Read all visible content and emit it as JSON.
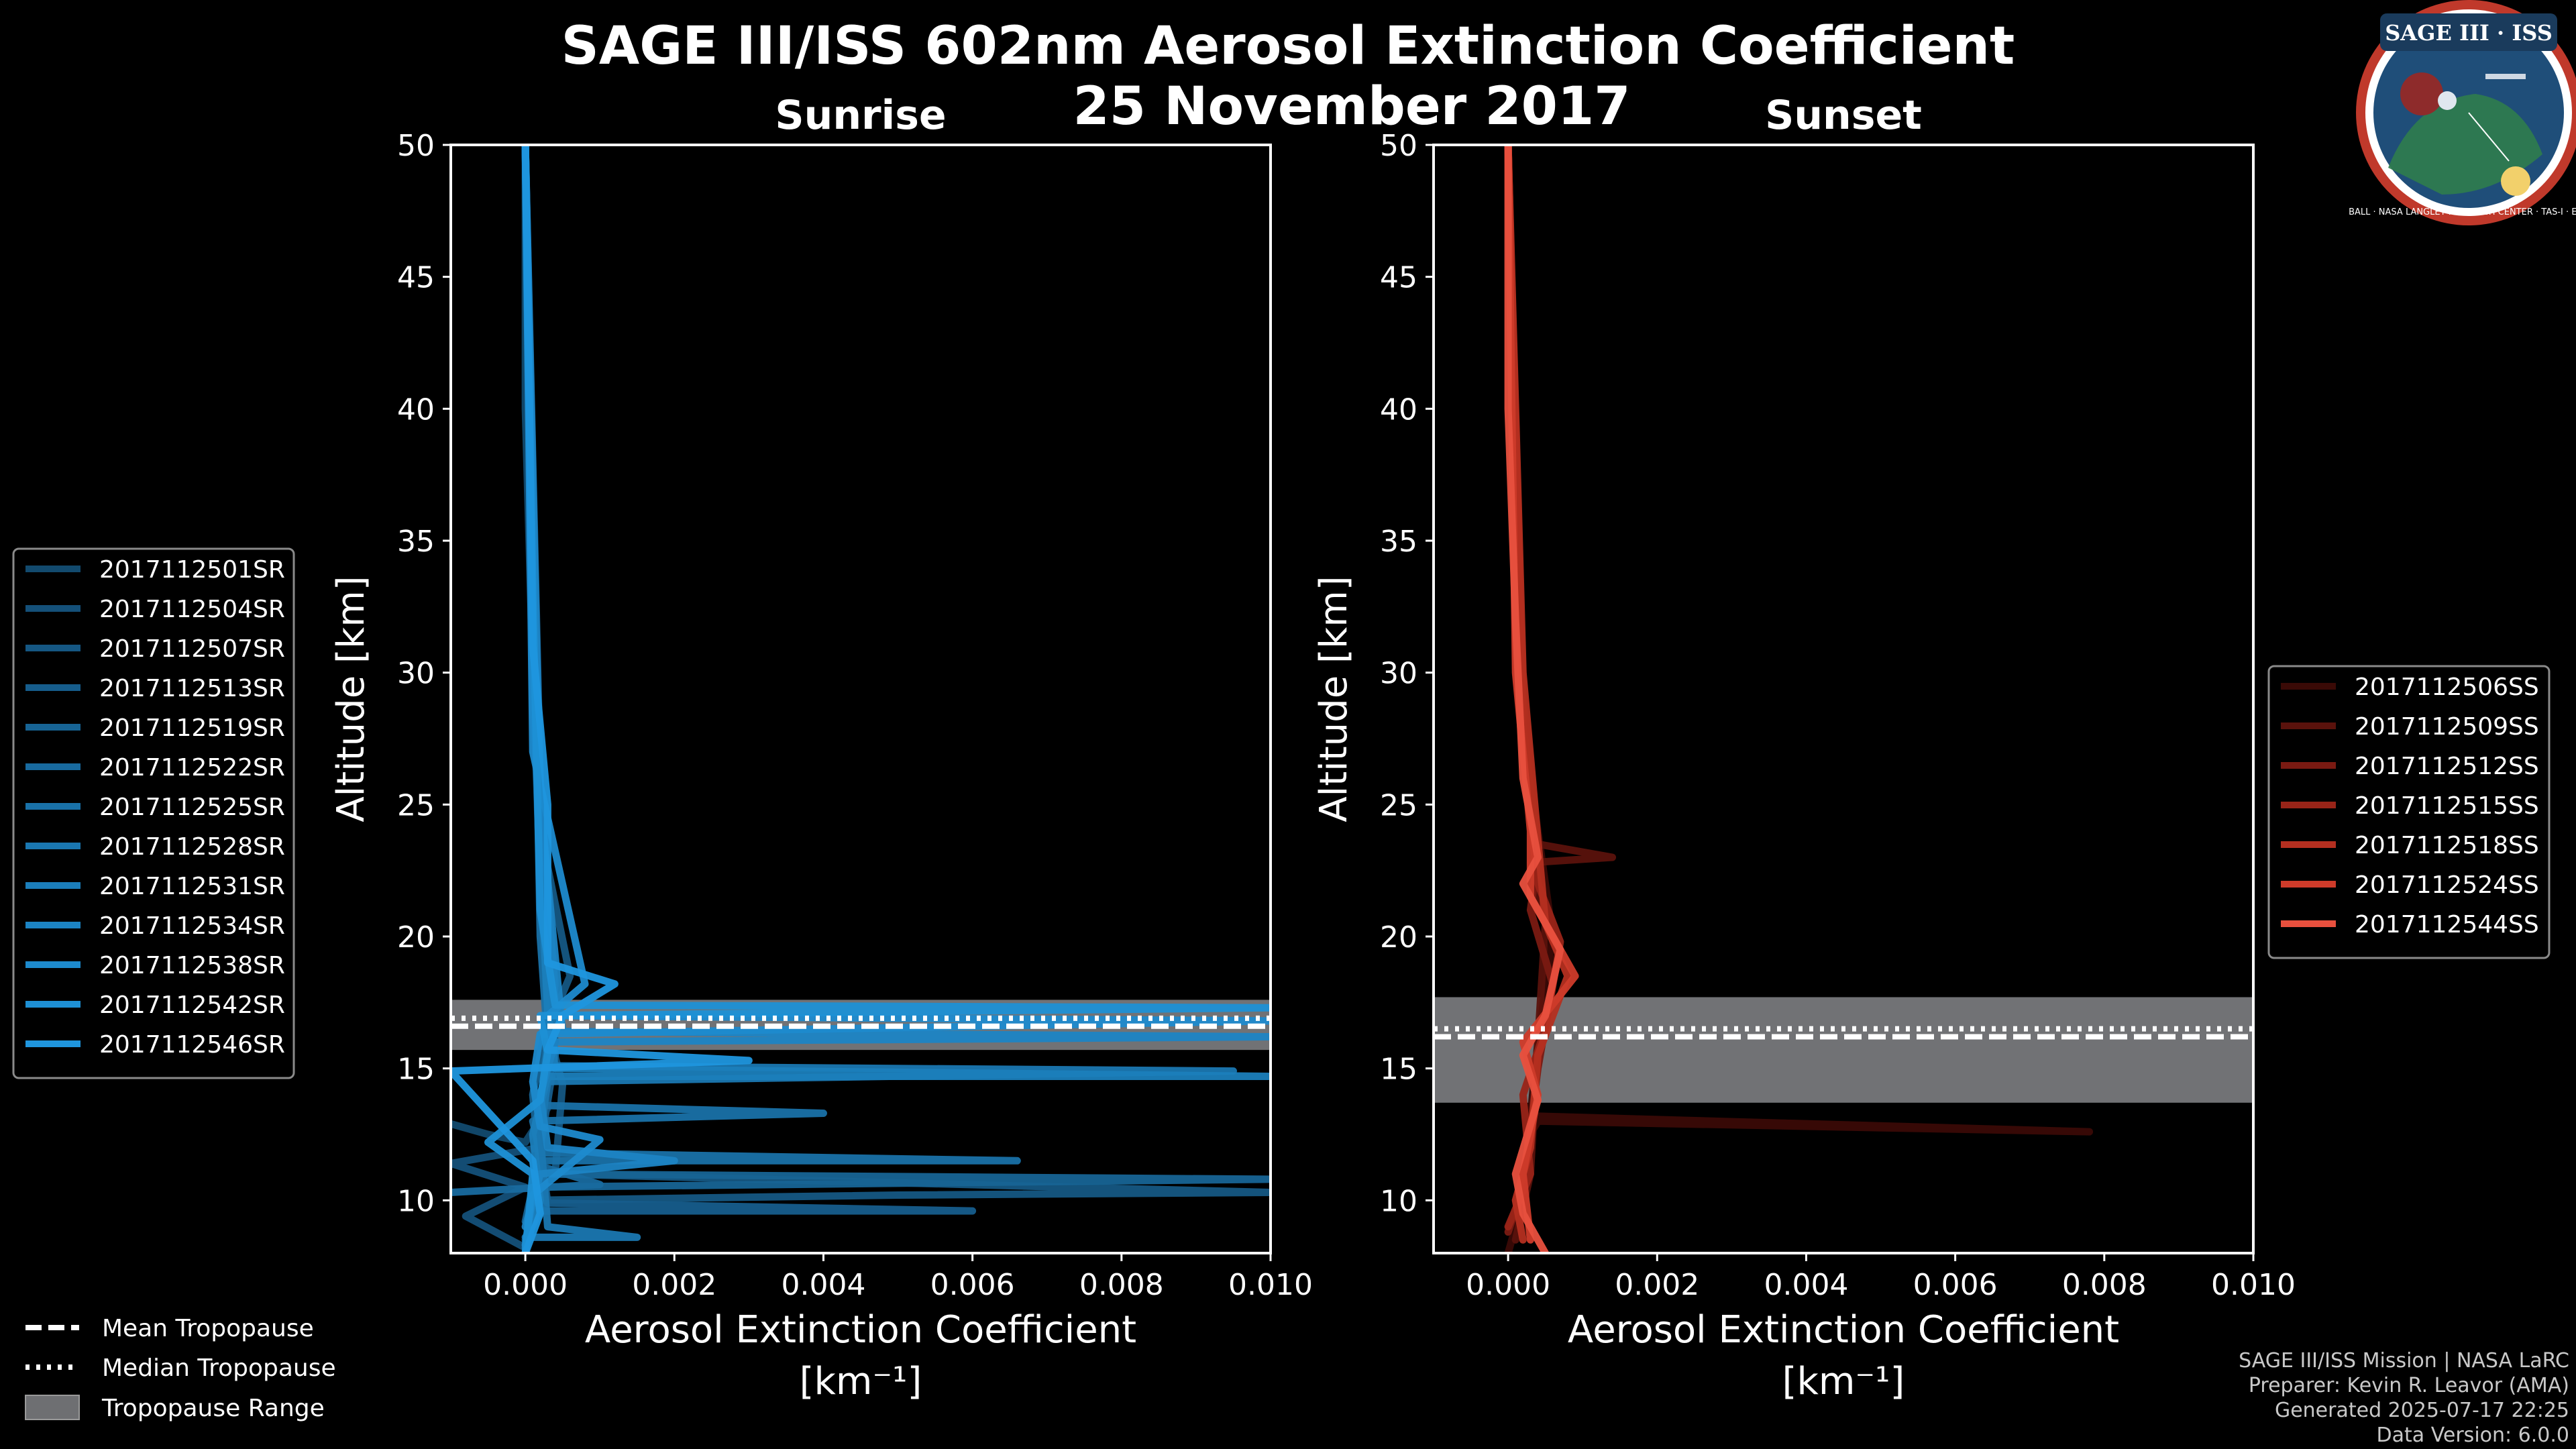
{
  "title": {
    "line1": "SAGE III/ISS 602nm Aerosol Extinction Coefficient",
    "line2": "25 November 2017"
  },
  "logo": {
    "text": "SAGE III · ISS",
    "ring_text": "BALL · NASA LANGLEY RESEARCH CENTER · TAS-I · ESA",
    "colors": {
      "ring": "#c0392b",
      "inner": "#1f4e79"
    }
  },
  "credits": {
    "line1": "SAGE III/ISS Mission | NASA LaRC",
    "line2": "Preparer: Kevin R. Leavor (AMA)",
    "line3": "Generated 2025-07-17 22:25",
    "line4": "Data Version: 6.0.0"
  },
  "bottom_legend": {
    "mean": "Mean Tropopause",
    "median": "Median Tropopause",
    "range": "Tropopause Range"
  },
  "chart_data": [
    {
      "type": "line",
      "title": "Sunrise",
      "xlabel": "Aerosol Extinction Coefficient",
      "xlabel_units": "[km⁻¹]",
      "ylabel": "Altitude [km]",
      "xlim": [
        -0.001,
        0.01
      ],
      "ylim": [
        8,
        50
      ],
      "xticks": [
        0.0,
        0.002,
        0.004,
        0.006,
        0.008,
        0.01
      ],
      "xtick_labels": [
        "0.000",
        "0.002",
        "0.004",
        "0.006",
        "0.008",
        "0.010"
      ],
      "yticks": [
        10,
        15,
        20,
        25,
        30,
        35,
        40,
        45,
        50
      ],
      "ytick_labels": [
        "10",
        "15",
        "20",
        "25",
        "30",
        "35",
        "40",
        "45",
        "50"
      ],
      "tropopause": {
        "mean": 16.6,
        "median": 16.9,
        "range": [
          15.7,
          17.6
        ]
      },
      "base_color": "#1f8fd6",
      "series": [
        {
          "name": "2017112501SR",
          "color": "#124a6e",
          "values": [
            [
              -0.001,
              12.9
            ],
            [
              -0.0005,
              12.5
            ],
            [
              0.0,
              12.2
            ],
            [
              0.0003,
              13.5
            ],
            [
              0.0002,
              15.0
            ],
            [
              0.0004,
              16.0
            ],
            [
              0.0003,
              18.0
            ],
            [
              0.0002,
              22.0
            ],
            [
              0.0001,
              30.0
            ],
            [
              0.0,
              40.0
            ],
            [
              0.0,
              50.0
            ]
          ]
        },
        {
          "name": "2017112504SR",
          "color": "#145079",
          "values": [
            [
              0.0,
              8.2
            ],
            [
              -0.0008,
              9.4
            ],
            [
              0.0,
              10.5
            ],
            [
              -0.001,
              11.4
            ],
            [
              0.0002,
              12.0
            ],
            [
              0.0003,
              15.5
            ],
            [
              0.0004,
              18.2
            ],
            [
              0.0002,
              25.0
            ],
            [
              0.0001,
              35.0
            ],
            [
              0.0,
              50.0
            ]
          ]
        },
        {
          "name": "2017112507SR",
          "color": "#155783",
          "values": [
            [
              0.0,
              8.0
            ],
            [
              0.0001,
              10.0
            ],
            [
              0.005,
              10.2
            ],
            [
              0.01,
              10.3
            ],
            [
              0.0004,
              11.0
            ],
            [
              0.0005,
              14.4
            ],
            [
              0.0003,
              16.5
            ],
            [
              0.0006,
              18.5
            ],
            [
              0.0002,
              24.0
            ],
            [
              0.0,
              50.0
            ]
          ]
        },
        {
          "name": "2017112513SR",
          "color": "#165d8c",
          "values": [
            [
              0.0,
              8.5
            ],
            [
              0.0002,
              9.6
            ],
            [
              0.006,
              9.6
            ],
            [
              0.0003,
              9.9
            ],
            [
              0.0002,
              12.0
            ],
            [
              0.0004,
              15.5
            ],
            [
              0.0003,
              17.9
            ],
            [
              0.0002,
              26.0
            ],
            [
              0.0,
              50.0
            ]
          ]
        },
        {
          "name": "2017112519SR",
          "color": "#176495",
          "values": [
            [
              0.0,
              9.2
            ],
            [
              0.0001,
              10.5
            ],
            [
              0.01,
              10.8
            ],
            [
              0.0002,
              11.0
            ],
            [
              0.0001,
              14.0
            ],
            [
              0.0003,
              17.0
            ],
            [
              0.0002,
              22.0
            ],
            [
              0.0,
              50.0
            ]
          ]
        },
        {
          "name": "2017112522SR",
          "color": "#186a9f",
          "values": [
            [
              -0.001,
              10.3
            ],
            [
              0.001,
              10.6
            ],
            [
              0.0002,
              11.3
            ],
            [
              0.0002,
              13.5
            ],
            [
              0.0004,
              15.5
            ],
            [
              0.0003,
              18.0
            ],
            [
              0.0001,
              29.0
            ],
            [
              0.0,
              50.0
            ]
          ]
        },
        {
          "name": "2017112525SR",
          "color": "#1971a8",
          "values": [
            [
              0.0,
              8.0
            ],
            [
              0.0002,
              11.5
            ],
            [
              0.0066,
              11.5
            ],
            [
              0.0002,
              11.8
            ],
            [
              0.0001,
              13.0
            ],
            [
              0.004,
              13.3
            ],
            [
              0.0002,
              13.6
            ],
            [
              0.0003,
              16.0
            ],
            [
              0.0002,
              20.0
            ],
            [
              0.0,
              50.0
            ]
          ]
        },
        {
          "name": "2017112528SR",
          "color": "#1a77b1",
          "values": [
            [
              0.0,
              8.6
            ],
            [
              0.0015,
              8.6
            ],
            [
              0.0003,
              9.0
            ],
            [
              0.0002,
              12.5
            ],
            [
              0.0003,
              14.5
            ],
            [
              0.0095,
              14.9
            ],
            [
              0.0003,
              15.1
            ],
            [
              0.0004,
              17.5
            ],
            [
              0.0001,
              30.0
            ],
            [
              0.0,
              50.0
            ]
          ]
        },
        {
          "name": "2017112531SR",
          "color": "#1b7ebb",
          "values": [
            [
              0.0,
              8.2
            ],
            [
              0.0002,
              10.0
            ],
            [
              0.0001,
              12.5
            ],
            [
              0.0003,
              14.7
            ],
            [
              0.01,
              14.7
            ],
            [
              0.0004,
              15.0
            ],
            [
              0.0003,
              17.2
            ],
            [
              0.0002,
              23.0
            ],
            [
              0.0,
              50.0
            ]
          ]
        },
        {
          "name": "2017112534SR",
          "color": "#1c84c4",
          "values": [
            [
              0.0,
              9.0
            ],
            [
              0.0002,
              11.0
            ],
            [
              0.002,
              11.5
            ],
            [
              0.0003,
              12.0
            ],
            [
              0.0002,
              14.0
            ],
            [
              0.0004,
              16.0
            ],
            [
              0.01,
              16.2
            ],
            [
              0.0005,
              16.4
            ],
            [
              0.0002,
              25.0
            ],
            [
              0.0,
              50.0
            ]
          ]
        },
        {
          "name": "2017112538SR",
          "color": "#1d8acd",
          "values": [
            [
              0.0,
              8.3
            ],
            [
              0.0001,
              10.2
            ],
            [
              0.001,
              12.3
            ],
            [
              0.0002,
              12.8
            ],
            [
              0.0001,
              14.5
            ],
            [
              0.0002,
              16.3
            ],
            [
              0.01,
              16.8
            ],
            [
              0.0003,
              17.0
            ],
            [
              0.0008,
              18.2
            ],
            [
              0.0001,
              27.0
            ],
            [
              0.0,
              50.0
            ]
          ]
        },
        {
          "name": "2017112542SR",
          "color": "#1e90d5",
          "values": [
            [
              0.0,
              8.0
            ],
            [
              0.0001,
              11.0
            ],
            [
              -0.0005,
              12.2
            ],
            [
              0.0002,
              13.8
            ],
            [
              0.0003,
              15.6
            ],
            [
              0.0002,
              17.0
            ],
            [
              0.01,
              17.3
            ],
            [
              0.0004,
              17.4
            ],
            [
              0.0002,
              21.0
            ],
            [
              0.0001,
              33.0
            ],
            [
              0.0,
              50.0
            ]
          ]
        },
        {
          "name": "2017112546SR",
          "color": "#1f96de",
          "values": [
            [
              0.0,
              8.0
            ],
            [
              0.0002,
              9.5
            ],
            [
              0.0001,
              11.5
            ],
            [
              -0.001,
              14.9
            ],
            [
              0.003,
              15.3
            ],
            [
              0.0003,
              15.7
            ],
            [
              0.0005,
              17.0
            ],
            [
              0.0012,
              18.2
            ],
            [
              0.0003,
              19.0
            ],
            [
              0.0003,
              25.0
            ],
            [
              0.0001,
              31.0
            ],
            [
              0.0,
              50.0
            ]
          ]
        }
      ]
    },
    {
      "type": "line",
      "title": "Sunset",
      "xlabel": "Aerosol Extinction Coefficient",
      "xlabel_units": "[km⁻¹]",
      "ylabel": "Altitude [km]",
      "xlim": [
        -0.001,
        0.01
      ],
      "ylim": [
        8,
        50
      ],
      "xticks": [
        0.0,
        0.002,
        0.004,
        0.006,
        0.008,
        0.01
      ],
      "xtick_labels": [
        "0.000",
        "0.002",
        "0.004",
        "0.006",
        "0.008",
        "0.010"
      ],
      "yticks": [
        10,
        15,
        20,
        25,
        30,
        35,
        40,
        45,
        50
      ],
      "ytick_labels": [
        "10",
        "15",
        "20",
        "25",
        "30",
        "35",
        "40",
        "45",
        "50"
      ],
      "tropopause": {
        "mean": 16.2,
        "median": 16.5,
        "range": [
          13.7,
          17.7
        ]
      },
      "base_color": "#e8503e",
      "series": [
        {
          "name": "2017112506SS",
          "color": "#3a0a06",
          "values": [
            [
              0.0,
              8.0
            ],
            [
              0.0002,
              10.0
            ],
            [
              0.0003,
              12.5
            ],
            [
              0.0004,
              13.0
            ],
            [
              0.0078,
              12.6
            ],
            [
              0.0003,
              13.2
            ],
            [
              0.0004,
              16.0
            ],
            [
              0.0006,
              20.0
            ],
            [
              0.0002,
              28.0
            ],
            [
              0.0,
              50.0
            ]
          ]
        },
        {
          "name": "2017112509SS",
          "color": "#5a120c",
          "values": [
            [
              0.0001,
              8.5
            ],
            [
              0.0003,
              11.0
            ],
            [
              0.0004,
              16.0
            ],
            [
              0.0005,
              20.5
            ],
            [
              0.0003,
              22.8
            ],
            [
              0.0014,
              23.0
            ],
            [
              0.0004,
              23.5
            ],
            [
              0.0002,
              29.0
            ],
            [
              0.0,
              50.0
            ]
          ]
        },
        {
          "name": "2017112512SS",
          "color": "#7a1a12",
          "values": [
            [
              0.0,
              8.8
            ],
            [
              0.0002,
              10.5
            ],
            [
              0.0004,
              15.0
            ],
            [
              0.0006,
              18.2
            ],
            [
              0.0003,
              21.0
            ],
            [
              0.0004,
              23.0
            ],
            [
              0.0002,
              28.0
            ],
            [
              0.0,
              50.0
            ]
          ]
        },
        {
          "name": "2017112515SS",
          "color": "#992418",
          "values": [
            [
              0.0,
              9.0
            ],
            [
              0.0003,
              11.0
            ],
            [
              0.0002,
              14.0
            ],
            [
              0.0005,
              16.5
            ],
            [
              0.0007,
              19.8
            ],
            [
              0.0004,
              22.0
            ],
            [
              0.0002,
              27.0
            ],
            [
              0.0,
              50.0
            ]
          ]
        },
        {
          "name": "2017112518SS",
          "color": "#b42f20",
          "values": [
            [
              0.0002,
              8.5
            ],
            [
              0.0001,
              10.0
            ],
            [
              0.0003,
              12.0
            ],
            [
              0.0004,
              15.5
            ],
            [
              0.0008,
              18.5
            ],
            [
              0.0005,
              20.5
            ],
            [
              0.0002,
              30.0
            ],
            [
              0.0,
              50.0
            ]
          ]
        },
        {
          "name": "2017112524SS",
          "color": "#ce3b2a",
          "values": [
            [
              0.0003,
              8.5
            ],
            [
              0.0002,
              11.0
            ],
            [
              0.0004,
              14.0
            ],
            [
              0.0002,
              16.0
            ],
            [
              0.0009,
              18.5
            ],
            [
              0.0003,
              21.5
            ],
            [
              0.0003,
              24.0
            ],
            [
              0.0001,
              30.0
            ],
            [
              0.0,
              50.0
            ]
          ]
        },
        {
          "name": "2017112544SS",
          "color": "#e8503e",
          "values": [
            [
              0.0005,
              8.0
            ],
            [
              0.0002,
              9.5
            ],
            [
              0.0001,
              11.0
            ],
            [
              0.0004,
              13.8
            ],
            [
              0.0002,
              15.5
            ],
            [
              0.0005,
              17.0
            ],
            [
              0.0007,
              19.5
            ],
            [
              0.0002,
              22.0
            ],
            [
              0.0004,
              23.0
            ],
            [
              0.0002,
              26.0
            ],
            [
              0.0001,
              32.0
            ],
            [
              0.0,
              40.0
            ],
            [
              0.0,
              50.0
            ]
          ]
        }
      ]
    }
  ]
}
